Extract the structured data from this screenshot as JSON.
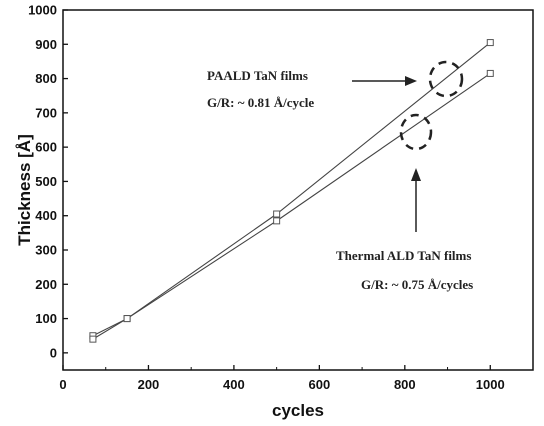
{
  "chart_data": {
    "type": "line",
    "xlabel": "cycles",
    "ylabel": "Thickness [Å]",
    "xlim": [
      0,
      1100
    ],
    "ylim": [
      -50,
      1000
    ],
    "x_ticks": [
      "0",
      "200",
      "400",
      "600",
      "800",
      "1000"
    ],
    "y_ticks": [
      "0",
      "100",
      "200",
      "300",
      "400",
      "500",
      "600",
      "700",
      "800",
      "900",
      "1000"
    ],
    "grid": false,
    "series": [
      {
        "x": [
          70,
          150,
          500,
          1000
        ],
        "y": [
          50,
          100,
          405,
          905
        ]
      },
      {
        "x": [
          70,
          150,
          500,
          1000
        ],
        "y": [
          40,
          100,
          385,
          815
        ]
      }
    ],
    "annotations": [
      {
        "text": "PAALD TaN films",
        "x": 880,
        "y": 810
      },
      {
        "text": "G/R: ~ 0.81 Å/cycle"
      },
      {
        "text": "Thermal ALD TaN films",
        "x": 810,
        "y": 640
      },
      {
        "text": "G/R: ~  0.75 Å/cycles"
      }
    ],
    "colors": {
      "line": "#444444",
      "marker": "#555555",
      "axis": "#111111"
    }
  }
}
